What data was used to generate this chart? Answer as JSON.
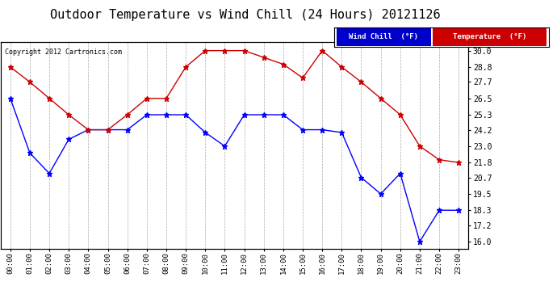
{
  "title": "Outdoor Temperature vs Wind Chill (24 Hours) 20121126",
  "copyright": "Copyright 2012 Cartronics.com",
  "x_labels": [
    "00:00",
    "01:00",
    "02:00",
    "03:00",
    "04:00",
    "05:00",
    "06:00",
    "07:00",
    "08:00",
    "09:00",
    "10:00",
    "11:00",
    "12:00",
    "13:00",
    "14:00",
    "15:00",
    "16:00",
    "17:00",
    "18:00",
    "19:00",
    "20:00",
    "21:00",
    "22:00",
    "23:00"
  ],
  "wind_chill": [
    26.5,
    22.5,
    21.0,
    23.5,
    24.2,
    24.2,
    24.2,
    25.3,
    25.3,
    25.3,
    24.0,
    23.0,
    25.3,
    25.3,
    25.3,
    24.2,
    24.2,
    24.0,
    20.7,
    19.5,
    21.0,
    16.0,
    18.3,
    18.3
  ],
  "temperature": [
    28.8,
    27.7,
    26.5,
    25.3,
    24.2,
    24.2,
    25.3,
    26.5,
    26.5,
    28.8,
    30.0,
    30.0,
    30.0,
    29.5,
    29.0,
    28.0,
    30.0,
    28.8,
    27.7,
    26.5,
    25.3,
    23.0,
    22.0,
    21.8
  ],
  "wind_chill_color": "#0000ff",
  "temperature_color": "#cc0000",
  "background_color": "#ffffff",
  "plot_bg_color": "#ffffff",
  "grid_color": "#aaaaaa",
  "ylim": [
    15.5,
    30.6
  ],
  "yticks": [
    16.0,
    17.2,
    18.3,
    19.5,
    20.7,
    21.8,
    23.0,
    24.2,
    25.3,
    26.5,
    27.7,
    28.8,
    30.0
  ],
  "title_fontsize": 11,
  "legend_wind_chill_bg": "#0000cc",
  "legend_wind_chill_text": "Wind Chill  (°F)",
  "legend_temp_bg": "#cc0000",
  "legend_temp_text": "Temperature  (°F)"
}
